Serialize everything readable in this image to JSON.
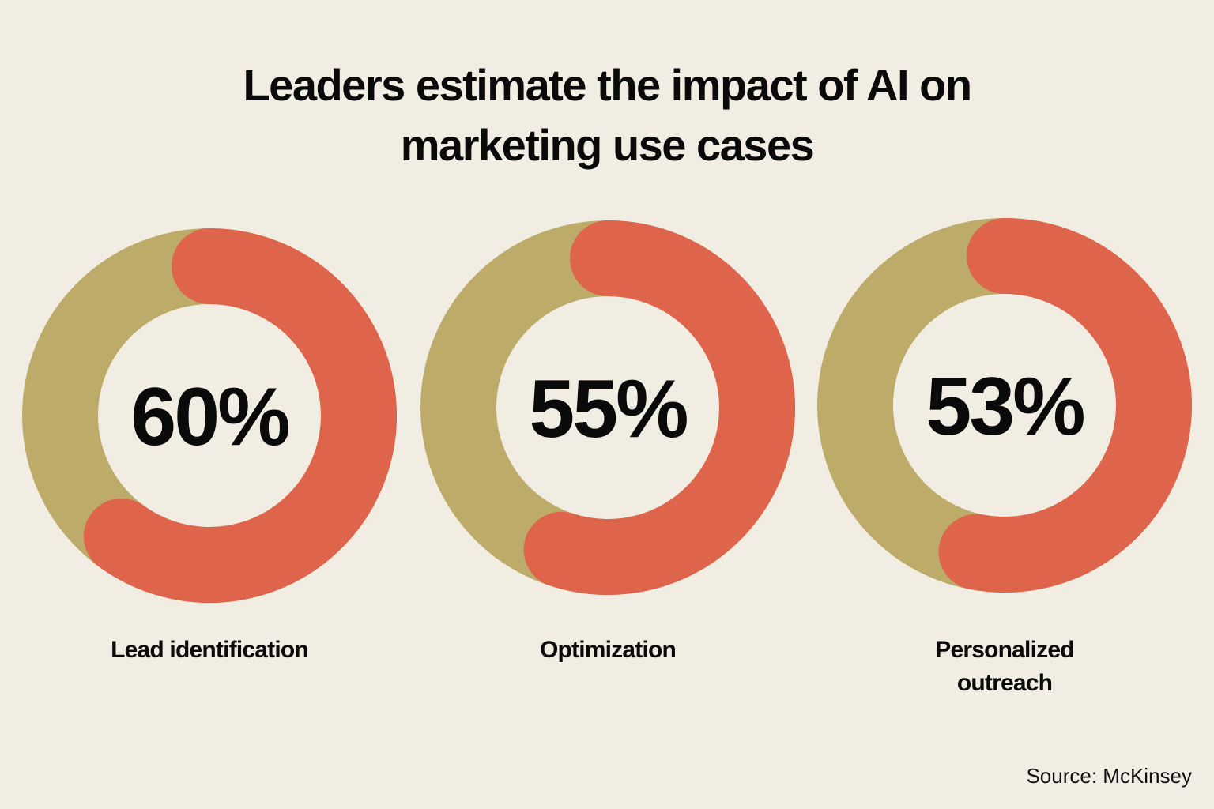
{
  "title_lines": [
    "Leaders estimate the impact of AI on",
    "marketing use cases"
  ],
  "source": "Source: McKinsey",
  "colors": {
    "background": "#f2ede2",
    "remainder_ring": "#bcab69",
    "value_arc": "#df644c",
    "text": "#0a0a0a"
  },
  "chart_data": {
    "type": "pie",
    "subtype": "donut",
    "title": "Leaders estimate the impact of AI on marketing use cases",
    "unit": "%",
    "items": [
      {
        "label_lines": [
          "Lead identification"
        ],
        "value": 60,
        "value_text": "60%"
      },
      {
        "label_lines": [
          "Optimization"
        ],
        "value": 55,
        "value_text": "55%"
      },
      {
        "label_lines": [
          "Personalized",
          "outreach"
        ],
        "value": 53,
        "value_text": "53%"
      }
    ]
  }
}
